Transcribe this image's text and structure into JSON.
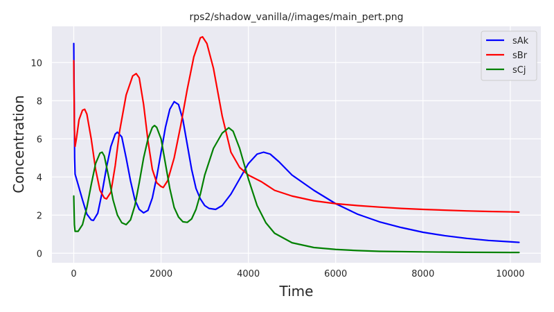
{
  "chart_data": {
    "type": "line",
    "title": "rps2/shadow_vanilla//images/main_pert.png",
    "xlabel": "Time",
    "ylabel": "Concentration",
    "xlim": [
      -500,
      10700
    ],
    "ylim": [
      -0.5,
      11.9
    ],
    "xticks": [
      0,
      2000,
      4000,
      6000,
      8000,
      10000
    ],
    "yticks": [
      0,
      2,
      4,
      6,
      8,
      10
    ],
    "grid": true,
    "legend_position": "top-right",
    "series": [
      {
        "name": "sAk",
        "color": "#0000ff",
        "points": [
          [
            0,
            11.0
          ],
          [
            10,
            8.0
          ],
          [
            20,
            5.0
          ],
          [
            30,
            4.15
          ],
          [
            100,
            3.6
          ],
          [
            200,
            2.8
          ],
          [
            300,
            2.05
          ],
          [
            400,
            1.75
          ],
          [
            450,
            1.72
          ],
          [
            550,
            2.1
          ],
          [
            650,
            3.2
          ],
          [
            750,
            4.5
          ],
          [
            850,
            5.6
          ],
          [
            950,
            6.25
          ],
          [
            1000,
            6.35
          ],
          [
            1100,
            6.1
          ],
          [
            1200,
            5.0
          ],
          [
            1300,
            3.8
          ],
          [
            1400,
            2.8
          ],
          [
            1500,
            2.3
          ],
          [
            1600,
            2.12
          ],
          [
            1700,
            2.25
          ],
          [
            1800,
            2.9
          ],
          [
            1900,
            4.0
          ],
          [
            2000,
            5.3
          ],
          [
            2100,
            6.6
          ],
          [
            2200,
            7.55
          ],
          [
            2300,
            7.95
          ],
          [
            2400,
            7.8
          ],
          [
            2500,
            7.0
          ],
          [
            2600,
            5.7
          ],
          [
            2700,
            4.4
          ],
          [
            2800,
            3.4
          ],
          [
            2900,
            2.85
          ],
          [
            3000,
            2.5
          ],
          [
            3100,
            2.35
          ],
          [
            3250,
            2.3
          ],
          [
            3400,
            2.5
          ],
          [
            3600,
            3.1
          ],
          [
            3800,
            3.9
          ],
          [
            4000,
            4.7
          ],
          [
            4200,
            5.2
          ],
          [
            4350,
            5.3
          ],
          [
            4500,
            5.2
          ],
          [
            4700,
            4.8
          ],
          [
            5000,
            4.1
          ],
          [
            5500,
            3.3
          ],
          [
            6000,
            2.6
          ],
          [
            6500,
            2.05
          ],
          [
            7000,
            1.65
          ],
          [
            7500,
            1.35
          ],
          [
            8000,
            1.1
          ],
          [
            8500,
            0.92
          ],
          [
            9000,
            0.78
          ],
          [
            9500,
            0.67
          ],
          [
            10000,
            0.6
          ],
          [
            10200,
            0.57
          ]
        ]
      },
      {
        "name": "sBr",
        "color": "#ff0000",
        "points": [
          [
            0,
            10.1
          ],
          [
            15,
            6.5
          ],
          [
            30,
            5.6
          ],
          [
            60,
            6.0
          ],
          [
            120,
            7.0
          ],
          [
            200,
            7.5
          ],
          [
            250,
            7.55
          ],
          [
            300,
            7.3
          ],
          [
            400,
            6.0
          ],
          [
            500,
            4.4
          ],
          [
            600,
            3.3
          ],
          [
            700,
            2.9
          ],
          [
            750,
            2.85
          ],
          [
            850,
            3.2
          ],
          [
            950,
            4.6
          ],
          [
            1050,
            6.4
          ],
          [
            1200,
            8.3
          ],
          [
            1350,
            9.3
          ],
          [
            1430,
            9.42
          ],
          [
            1500,
            9.2
          ],
          [
            1600,
            7.8
          ],
          [
            1700,
            5.9
          ],
          [
            1800,
            4.4
          ],
          [
            1900,
            3.7
          ],
          [
            2000,
            3.5
          ],
          [
            2050,
            3.45
          ],
          [
            2150,
            3.8
          ],
          [
            2300,
            5.0
          ],
          [
            2450,
            6.7
          ],
          [
            2600,
            8.6
          ],
          [
            2750,
            10.3
          ],
          [
            2900,
            11.3
          ],
          [
            2950,
            11.35
          ],
          [
            3050,
            11.0
          ],
          [
            3200,
            9.7
          ],
          [
            3400,
            7.2
          ],
          [
            3600,
            5.3
          ],
          [
            3800,
            4.5
          ],
          [
            4000,
            4.1
          ],
          [
            4300,
            3.75
          ],
          [
            4600,
            3.3
          ],
          [
            5000,
            3.0
          ],
          [
            5500,
            2.75
          ],
          [
            6000,
            2.6
          ],
          [
            6500,
            2.5
          ],
          [
            7000,
            2.42
          ],
          [
            7500,
            2.35
          ],
          [
            8000,
            2.3
          ],
          [
            8500,
            2.26
          ],
          [
            9000,
            2.22
          ],
          [
            9500,
            2.19
          ],
          [
            10000,
            2.17
          ],
          [
            10200,
            2.16
          ]
        ]
      },
      {
        "name": "sCj",
        "color": "#008000",
        "points": [
          [
            0,
            3.0
          ],
          [
            15,
            1.5
          ],
          [
            30,
            1.15
          ],
          [
            100,
            1.15
          ],
          [
            200,
            1.5
          ],
          [
            300,
            2.4
          ],
          [
            400,
            3.6
          ],
          [
            500,
            4.7
          ],
          [
            600,
            5.25
          ],
          [
            650,
            5.3
          ],
          [
            700,
            5.1
          ],
          [
            800,
            4.0
          ],
          [
            900,
            2.8
          ],
          [
            1000,
            2.0
          ],
          [
            1100,
            1.6
          ],
          [
            1200,
            1.5
          ],
          [
            1300,
            1.75
          ],
          [
            1400,
            2.5
          ],
          [
            1500,
            3.7
          ],
          [
            1600,
            5.0
          ],
          [
            1700,
            6.0
          ],
          [
            1800,
            6.6
          ],
          [
            1850,
            6.7
          ],
          [
            1900,
            6.6
          ],
          [
            2000,
            6.0
          ],
          [
            2100,
            4.7
          ],
          [
            2200,
            3.4
          ],
          [
            2300,
            2.4
          ],
          [
            2400,
            1.9
          ],
          [
            2500,
            1.65
          ],
          [
            2600,
            1.62
          ],
          [
            2700,
            1.8
          ],
          [
            2800,
            2.3
          ],
          [
            2900,
            3.1
          ],
          [
            3000,
            4.1
          ],
          [
            3200,
            5.5
          ],
          [
            3400,
            6.3
          ],
          [
            3550,
            6.58
          ],
          [
            3650,
            6.4
          ],
          [
            3800,
            5.5
          ],
          [
            4000,
            3.9
          ],
          [
            4200,
            2.5
          ],
          [
            4400,
            1.6
          ],
          [
            4600,
            1.05
          ],
          [
            5000,
            0.55
          ],
          [
            5500,
            0.3
          ],
          [
            6000,
            0.2
          ],
          [
            6500,
            0.14
          ],
          [
            7000,
            0.1
          ],
          [
            8000,
            0.07
          ],
          [
            9000,
            0.05
          ],
          [
            10000,
            0.04
          ],
          [
            10200,
            0.04
          ]
        ]
      }
    ]
  }
}
